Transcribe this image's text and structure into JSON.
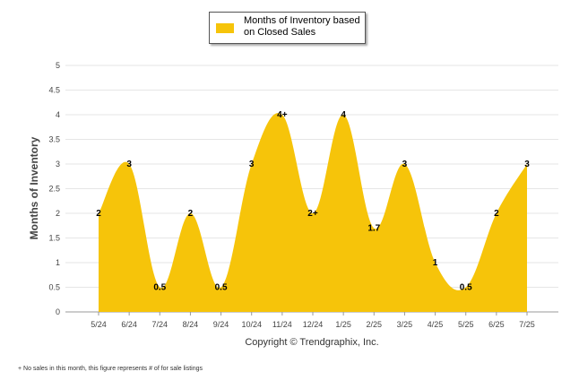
{
  "legend": {
    "label": "Months of Inventory based on Closed Sales"
  },
  "copyright": "Copyright © Trendgraphix, Inc.",
  "footnote": "+  No sales in this month, this figure represents # of for sale listings",
  "colors": {
    "series": "#f6c40a",
    "grid": "#e6e6e6",
    "axis": "#999999"
  },
  "chart_data": {
    "type": "area",
    "title": "",
    "ylabel": "Months of Inventory",
    "xlabel": "",
    "ylim": [
      0,
      5
    ],
    "yticks": [
      "0",
      "0.5",
      "1",
      "1.5",
      "2",
      "2.5",
      "3",
      "3.5",
      "4",
      "4.5",
      "5"
    ],
    "categories": [
      "5/24",
      "6/24",
      "7/24",
      "8/24",
      "9/24",
      "10/24",
      "11/24",
      "12/24",
      "1/25",
      "2/25",
      "3/25",
      "4/25",
      "5/25",
      "6/25",
      "7/25"
    ],
    "grid": true,
    "legend_position": "top-center",
    "series": [
      {
        "name": "Months of Inventory based on Closed Sales",
        "values": [
          2,
          3,
          0.5,
          2,
          0.5,
          3,
          4,
          2,
          4,
          1.7,
          3,
          1,
          0.5,
          2,
          3
        ],
        "labels": [
          "2",
          "3",
          "0.5",
          "2",
          "0.5",
          "3",
          "4+",
          "2+",
          "4",
          "1.7",
          "3",
          "1",
          "0.5",
          "2",
          "3"
        ]
      }
    ]
  }
}
